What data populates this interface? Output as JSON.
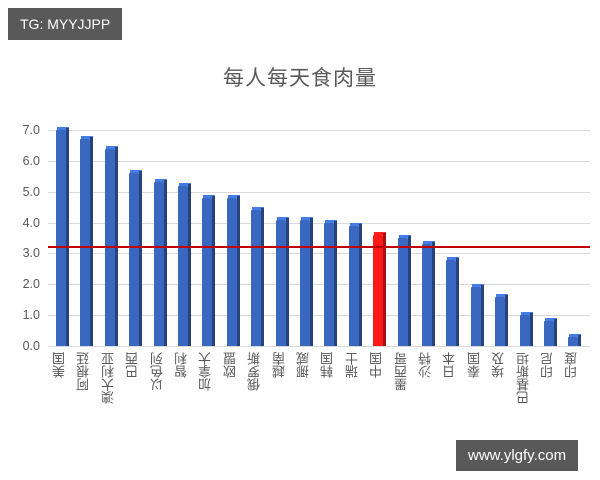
{
  "watermark_top": "TG: MYYJJPP",
  "watermark_bottom": "www.ylgfy.com",
  "colors": {
    "bar": "#3a67c0",
    "highlight": "#ff1a1a",
    "avg_line": "#c00000",
    "grid": "#d9d9d9",
    "text": "#595959"
  },
  "chart_data": {
    "type": "bar",
    "title": "每人每天食肉量",
    "xlabel": "",
    "ylabel": "",
    "ylim": [
      0,
      7
    ],
    "yticks": [
      "0.0",
      "1.0",
      "2.0",
      "3.0",
      "4.0",
      "5.0",
      "6.0",
      "7.0"
    ],
    "grid": true,
    "legend": null,
    "categories": [
      "美国",
      "阿根廷",
      "澳大利亚",
      "巴西",
      "以色列",
      "智利",
      "加拿大",
      "欧盟",
      "俄罗斯",
      "越南",
      "挪威",
      "韩国",
      "瑞士",
      "中国",
      "墨西哥",
      "沙特",
      "日本",
      "泰国",
      "埃及",
      "巴基斯坦",
      "印尼",
      "印度"
    ],
    "values": [
      7.0,
      6.7,
      6.4,
      5.6,
      5.3,
      5.2,
      4.8,
      4.8,
      4.4,
      4.1,
      4.1,
      4.0,
      3.9,
      3.6,
      3.5,
      3.3,
      2.8,
      1.9,
      1.6,
      1.0,
      0.8,
      0.3
    ],
    "highlight": "中国",
    "reference_line": {
      "value": 3.2,
      "color": "#c00000"
    }
  }
}
